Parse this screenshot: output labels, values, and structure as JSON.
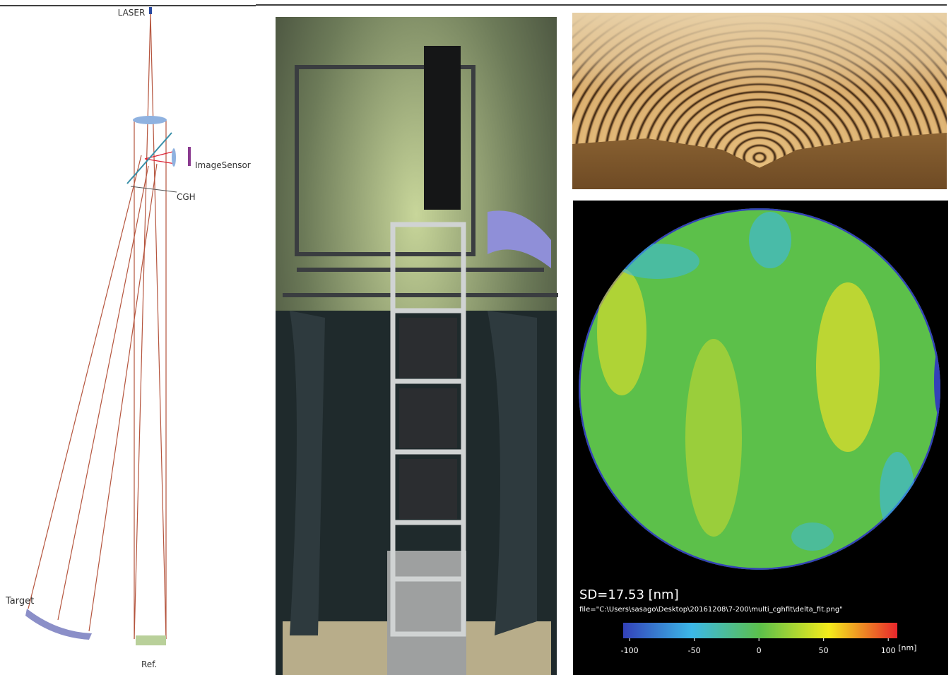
{
  "diagram": {
    "laser": "LASER",
    "image_sensor": "ImageSensor",
    "cgh": "CGH",
    "target": "Target",
    "reference": "Ref."
  },
  "surface_map": {
    "sd_label": "SD=17.53 [nm]",
    "file_label": "file=\"C:\\Users\\sasago\\Desktop\\20161208\\7-200\\multi_cghfit\\delta_fit.png\"",
    "colorbar": {
      "range": [
        -105,
        107
      ],
      "ticks": [
        -100,
        -50,
        0,
        50,
        100
      ],
      "unit": "[nm]"
    }
  }
}
